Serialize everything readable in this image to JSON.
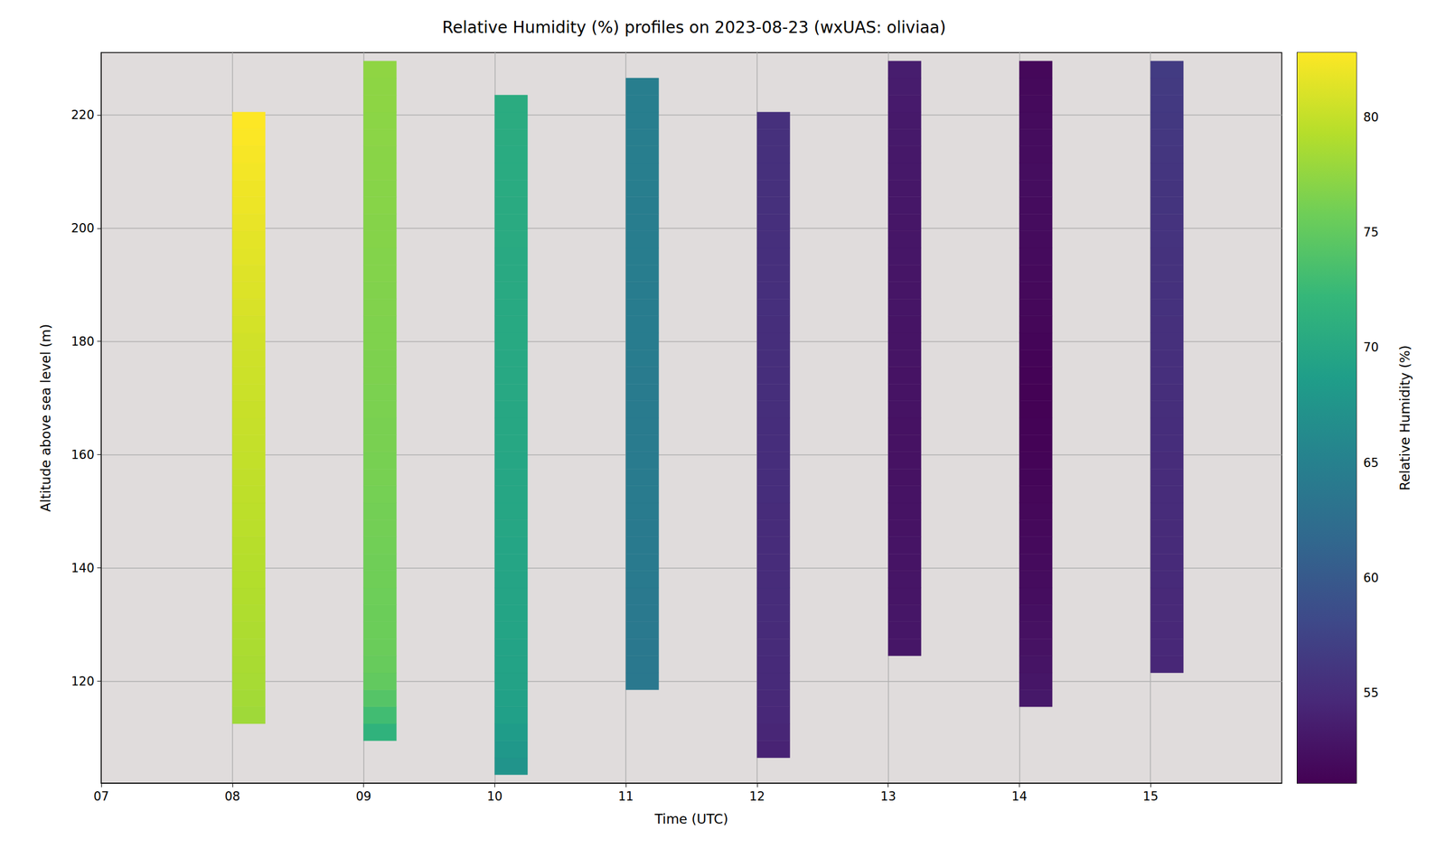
{
  "chart_data": {
    "type": "heatmap",
    "title": "Relative Humidity (%) profiles on 2023-08-23 (wxUAS: oliviaa)",
    "xlabel": "Time (UTC)",
    "ylabel": "Altitude above sea level (m)",
    "xlim": [
      7,
      16
    ],
    "xticks": [
      {
        "value": 7,
        "label": "07"
      },
      {
        "value": 8,
        "label": "08"
      },
      {
        "value": 9,
        "label": "09"
      },
      10,
      11,
      12,
      13,
      14,
      15
    ],
    "ylim": [
      102,
      231
    ],
    "yticks": [
      120,
      140,
      160,
      180,
      200,
      220
    ],
    "grid": true,
    "cell_width": 0.25,
    "cell_height": 3,
    "profiles": [
      {
        "time": 8,
        "bottom": 112.5,
        "values": [
          78.2,
          78.4,
          78.6,
          78.7,
          78.8,
          78.9,
          79.0,
          79.1,
          79.2,
          79.3,
          79.4,
          79.5,
          79.6,
          79.7,
          79.8,
          79.9,
          80.0,
          80.1,
          80.2,
          80.3,
          80.4,
          80.5,
          80.6,
          80.8,
          81.0,
          81.2,
          81.3,
          81.5,
          81.6,
          81.8,
          82.0,
          82.1,
          82.3,
          82.5,
          82.7,
          82.8
        ]
      },
      {
        "time": 9,
        "bottom": 109.5,
        "values": [
          71.5,
          73.0,
          74.2,
          75.0,
          75.3,
          75.5,
          75.6,
          75.6,
          75.7,
          75.8,
          75.8,
          75.9,
          76.0,
          76.0,
          76.1,
          76.2,
          76.2,
          76.3,
          76.3,
          76.4,
          76.4,
          76.5,
          76.5,
          76.6,
          76.6,
          76.7,
          76.7,
          76.8,
          76.8,
          76.9,
          76.9,
          77.0,
          77.0,
          77.1,
          77.1,
          77.2,
          77.2,
          77.3,
          77.3,
          77.4
        ]
      },
      {
        "time": 10,
        "bottom": 103.5,
        "values": [
          67.5,
          68.0,
          68.5,
          69.0,
          69.2,
          69.3,
          69.4,
          69.4,
          69.5,
          69.5,
          69.6,
          69.6,
          69.7,
          69.7,
          69.8,
          69.8,
          69.8,
          69.9,
          69.9,
          70.0,
          70.0,
          70.0,
          70.1,
          70.1,
          70.1,
          70.2,
          70.2,
          70.2,
          70.3,
          70.3,
          70.3,
          70.4,
          70.4,
          70.4,
          70.5,
          70.5,
          70.5,
          70.6,
          70.6,
          70.6
        ]
      },
      {
        "time": 11,
        "bottom": 118.5,
        "values": [
          63.8,
          63.9,
          63.9,
          64.0,
          64.0,
          64.0,
          64.1,
          64.1,
          64.1,
          64.1,
          64.2,
          64.2,
          64.2,
          64.2,
          64.3,
          64.3,
          64.3,
          64.3,
          64.3,
          64.4,
          64.4,
          64.4,
          64.4,
          64.4,
          64.5,
          64.5,
          64.5,
          64.5,
          64.5,
          64.6,
          64.6,
          64.6,
          64.6,
          64.7,
          64.7,
          64.7
        ]
      },
      {
        "time": 12,
        "bottom": 106.5,
        "values": [
          54.2,
          54.4,
          54.6,
          54.7,
          54.8,
          54.8,
          54.9,
          54.9,
          55.0,
          55.0,
          55.0,
          55.1,
          55.1,
          55.1,
          55.1,
          55.2,
          55.2,
          55.2,
          55.2,
          55.2,
          55.3,
          55.3,
          55.3,
          55.3,
          55.3,
          55.3,
          55.4,
          55.4,
          55.4,
          55.4,
          55.4,
          55.4,
          55.5,
          55.5,
          55.5,
          55.5,
          55.5,
          55.5
        ]
      },
      {
        "time": 13,
        "bottom": 124.5,
        "values": [
          53.0,
          53.0,
          53.0,
          52.9,
          52.9,
          52.8,
          52.8,
          52.7,
          52.7,
          52.7,
          52.6,
          52.6,
          52.6,
          52.6,
          52.7,
          52.7,
          52.7,
          52.8,
          52.8,
          52.8,
          52.9,
          52.9,
          52.9,
          53.0,
          53.0,
          53.0,
          53.1,
          53.1,
          53.2,
          53.2,
          53.3,
          53.3,
          53.4,
          53.5,
          53.6
        ]
      },
      {
        "time": 14,
        "bottom": 115.5,
        "values": [
          53.2,
          53.0,
          52.8,
          52.6,
          52.5,
          52.4,
          52.2,
          52.1,
          52.0,
          51.9,
          51.8,
          51.7,
          51.6,
          51.5,
          51.4,
          51.3,
          51.3,
          51.2,
          51.2,
          51.3,
          51.4,
          51.5,
          51.6,
          51.7,
          51.8,
          51.9,
          52.0,
          52.0,
          52.1,
          52.1,
          52.2,
          52.2,
          52.1,
          52.1,
          52.0,
          51.9,
          51.8,
          51.7
        ]
      },
      {
        "time": 15,
        "bottom": 121.5,
        "values": [
          54.5,
          54.6,
          54.6,
          54.7,
          54.7,
          54.8,
          54.8,
          54.9,
          54.9,
          55.0,
          55.0,
          55.1,
          55.1,
          55.2,
          55.2,
          55.3,
          55.3,
          55.4,
          55.4,
          55.5,
          55.5,
          55.6,
          55.6,
          55.7,
          55.7,
          55.8,
          55.8,
          55.9,
          55.9,
          56.0,
          56.1,
          56.2,
          56.3,
          56.4,
          56.5,
          56.7
        ]
      }
    ],
    "colorbar": {
      "label": "Relative Humidity (%)",
      "range": [
        51.1,
        82.8
      ],
      "ticks": [
        55,
        60,
        65,
        70,
        75,
        80
      ]
    }
  }
}
